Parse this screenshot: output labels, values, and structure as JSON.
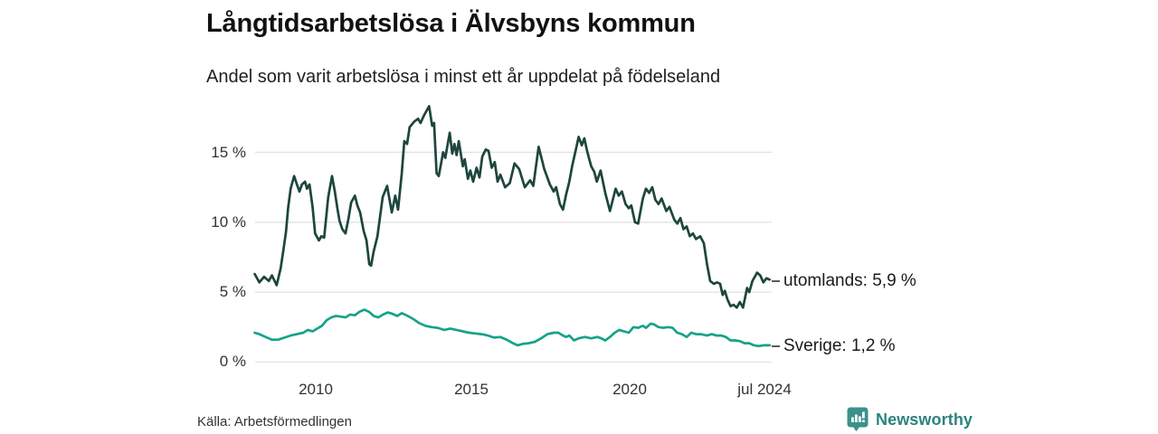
{
  "header": {
    "title": "Långtidsarbetslösa i Älvsbyns kommun",
    "subtitle": "Andel som varit arbetslösa i minst ett år uppdelat på födelseland"
  },
  "footer": {
    "source": "Källa: Arbetsförmedlingen",
    "brand": "Newsworthy"
  },
  "colors": {
    "utomlands_line": "#1d463d",
    "sverige_line": "#16a28a",
    "gridline": "#e2e2e2",
    "brand_teal": "#2b837d",
    "logo_teal": "#3b918a"
  },
  "chart_data": {
    "type": "line",
    "title": "Långtidsarbetslösa i Älvsbyns kommun",
    "subtitle": "Andel som varit arbetslösa i minst ett år uppdelat på födelseland",
    "grid": "horizontal-only",
    "legend_position": "end-of-line-right",
    "x_range": [
      2008.0,
      2024.58
    ],
    "ylim": [
      0,
      18.5
    ],
    "x_axis": {
      "ticks": [
        {
          "label": "2010",
          "year": 2010
        },
        {
          "label": "2015",
          "year": 2015
        },
        {
          "label": "2020",
          "year": 2020
        },
        {
          "label": "jul 2024",
          "year": 2024.34
        }
      ]
    },
    "y_axis": {
      "unit": "%",
      "ticks": [
        {
          "label": "0 %",
          "value": 0
        },
        {
          "label": "5 %",
          "value": 5
        },
        {
          "label": "10 %",
          "value": 10
        },
        {
          "label": "15 %",
          "value": 15
        }
      ]
    },
    "series": [
      {
        "name": "utomlands",
        "end_label": "utomlands: 5,9 %",
        "last_value": "5,9 %",
        "color": "#1d463d",
        "points": [
          [
            2008.05,
            6.3
          ],
          [
            2008.2,
            5.7
          ],
          [
            2008.35,
            6.1
          ],
          [
            2008.5,
            5.8
          ],
          [
            2008.6,
            6.2
          ],
          [
            2008.75,
            5.5
          ],
          [
            2008.88,
            6.7
          ],
          [
            2008.96,
            7.9
          ],
          [
            2009.05,
            9.3
          ],
          [
            2009.12,
            11.1
          ],
          [
            2009.2,
            12.4
          ],
          [
            2009.31,
            13.3
          ],
          [
            2009.4,
            12.7
          ],
          [
            2009.48,
            12.2
          ],
          [
            2009.56,
            12.7
          ],
          [
            2009.66,
            12.9
          ],
          [
            2009.72,
            12.4
          ],
          [
            2009.8,
            12.7
          ],
          [
            2009.9,
            11.1
          ],
          [
            2009.98,
            9.2
          ],
          [
            2010.1,
            8.7
          ],
          [
            2010.18,
            9.0
          ],
          [
            2010.27,
            8.9
          ],
          [
            2010.4,
            11.8
          ],
          [
            2010.52,
            13.3
          ],
          [
            2010.61,
            12.2
          ],
          [
            2010.69,
            11.0
          ],
          [
            2010.76,
            10.1
          ],
          [
            2010.85,
            9.5
          ],
          [
            2010.95,
            9.2
          ],
          [
            2011.05,
            10.3
          ],
          [
            2011.13,
            11.4
          ],
          [
            2011.25,
            11.9
          ],
          [
            2011.33,
            11.2
          ],
          [
            2011.42,
            10.7
          ],
          [
            2011.53,
            9.4
          ],
          [
            2011.62,
            8.7
          ],
          [
            2011.71,
            7.0
          ],
          [
            2011.77,
            6.9
          ],
          [
            2011.85,
            7.9
          ],
          [
            2011.97,
            9.0
          ],
          [
            2012.05,
            10.3
          ],
          [
            2012.14,
            11.8
          ],
          [
            2012.28,
            12.6
          ],
          [
            2012.43,
            10.7
          ],
          [
            2012.54,
            11.9
          ],
          [
            2012.63,
            10.9
          ],
          [
            2012.75,
            13.5
          ],
          [
            2012.83,
            15.8
          ],
          [
            2012.92,
            15.6
          ],
          [
            2013.0,
            16.8
          ],
          [
            2013.15,
            17.2
          ],
          [
            2013.27,
            17.4
          ],
          [
            2013.35,
            17.1
          ],
          [
            2013.45,
            17.6
          ],
          [
            2013.62,
            18.3
          ],
          [
            2013.72,
            16.9
          ],
          [
            2013.78,
            17.1
          ],
          [
            2013.86,
            13.5
          ],
          [
            2013.93,
            13.3
          ],
          [
            2014.07,
            15.0
          ],
          [
            2014.14,
            14.6
          ],
          [
            2014.28,
            16.4
          ],
          [
            2014.36,
            14.9
          ],
          [
            2014.43,
            15.6
          ],
          [
            2014.5,
            14.8
          ],
          [
            2014.57,
            15.8
          ],
          [
            2014.7,
            14.0
          ],
          [
            2014.76,
            14.5
          ],
          [
            2014.86,
            13.1
          ],
          [
            2014.94,
            13.7
          ],
          [
            2015.03,
            12.9
          ],
          [
            2015.14,
            13.9
          ],
          [
            2015.23,
            13.2
          ],
          [
            2015.32,
            14.7
          ],
          [
            2015.43,
            15.2
          ],
          [
            2015.52,
            15.1
          ],
          [
            2015.62,
            13.9
          ],
          [
            2015.72,
            14.3
          ],
          [
            2015.81,
            12.9
          ],
          [
            2015.9,
            13.4
          ],
          [
            2016.05,
            12.5
          ],
          [
            2016.2,
            12.8
          ],
          [
            2016.35,
            14.2
          ],
          [
            2016.5,
            13.8
          ],
          [
            2016.68,
            12.5
          ],
          [
            2016.85,
            13.0
          ],
          [
            2016.95,
            12.6
          ],
          [
            2017.12,
            15.4
          ],
          [
            2017.3,
            13.8
          ],
          [
            2017.48,
            12.7
          ],
          [
            2017.6,
            12.2
          ],
          [
            2017.68,
            12.5
          ],
          [
            2017.8,
            11.3
          ],
          [
            2017.9,
            10.9
          ],
          [
            2018.0,
            12.0
          ],
          [
            2018.1,
            12.9
          ],
          [
            2018.2,
            14.1
          ],
          [
            2018.3,
            15.1
          ],
          [
            2018.4,
            16.1
          ],
          [
            2018.5,
            15.5
          ],
          [
            2018.58,
            16.0
          ],
          [
            2018.68,
            15.0
          ],
          [
            2018.8,
            14.0
          ],
          [
            2018.9,
            13.6
          ],
          [
            2018.98,
            12.9
          ],
          [
            2019.1,
            13.7
          ],
          [
            2019.25,
            12.1
          ],
          [
            2019.4,
            10.8
          ],
          [
            2019.58,
            12.4
          ],
          [
            2019.68,
            11.9
          ],
          [
            2019.78,
            12.2
          ],
          [
            2019.9,
            11.3
          ],
          [
            2020.0,
            11.0
          ],
          [
            2020.08,
            11.2
          ],
          [
            2020.2,
            10.0
          ],
          [
            2020.3,
            9.9
          ],
          [
            2020.45,
            11.7
          ],
          [
            2020.55,
            12.4
          ],
          [
            2020.65,
            12.1
          ],
          [
            2020.75,
            12.5
          ],
          [
            2020.85,
            11.6
          ],
          [
            2020.95,
            11.3
          ],
          [
            2021.05,
            11.7
          ],
          [
            2021.2,
            10.8
          ],
          [
            2021.3,
            11.1
          ],
          [
            2021.45,
            10.2
          ],
          [
            2021.55,
            9.9
          ],
          [
            2021.65,
            10.3
          ],
          [
            2021.75,
            9.5
          ],
          [
            2021.85,
            9.7
          ],
          [
            2021.95,
            9.0
          ],
          [
            2022.05,
            9.2
          ],
          [
            2022.15,
            8.8
          ],
          [
            2022.28,
            9.0
          ],
          [
            2022.4,
            8.5
          ],
          [
            2022.5,
            7.0
          ],
          [
            2022.6,
            5.8
          ],
          [
            2022.72,
            5.6
          ],
          [
            2022.82,
            5.7
          ],
          [
            2022.92,
            5.6
          ],
          [
            2023.0,
            4.8
          ],
          [
            2023.07,
            5.1
          ],
          [
            2023.15,
            4.5
          ],
          [
            2023.25,
            4.0
          ],
          [
            2023.35,
            4.1
          ],
          [
            2023.45,
            3.9
          ],
          [
            2023.55,
            4.3
          ],
          [
            2023.65,
            3.9
          ],
          [
            2023.78,
            5.3
          ],
          [
            2023.85,
            5.0
          ],
          [
            2023.95,
            5.8
          ],
          [
            2024.1,
            6.4
          ],
          [
            2024.2,
            6.2
          ],
          [
            2024.3,
            5.7
          ],
          [
            2024.4,
            6.0
          ],
          [
            2024.5,
            5.9
          ]
        ]
      },
      {
        "name": "Sverige",
        "end_label": "Sverige: 1,2 %",
        "last_value": "1,2 %",
        "color": "#16a28a",
        "points": [
          [
            2008.05,
            2.1
          ],
          [
            2008.2,
            2.0
          ],
          [
            2008.4,
            1.8
          ],
          [
            2008.6,
            1.6
          ],
          [
            2008.8,
            1.6
          ],
          [
            2009.0,
            1.75
          ],
          [
            2009.2,
            1.9
          ],
          [
            2009.4,
            2.0
          ],
          [
            2009.6,
            2.1
          ],
          [
            2009.75,
            2.3
          ],
          [
            2009.9,
            2.2
          ],
          [
            2010.05,
            2.4
          ],
          [
            2010.2,
            2.6
          ],
          [
            2010.35,
            3.0
          ],
          [
            2010.5,
            3.2
          ],
          [
            2010.65,
            3.3
          ],
          [
            2010.8,
            3.25
          ],
          [
            2010.95,
            3.2
          ],
          [
            2011.1,
            3.4
          ],
          [
            2011.25,
            3.35
          ],
          [
            2011.4,
            3.6
          ],
          [
            2011.55,
            3.75
          ],
          [
            2011.7,
            3.6
          ],
          [
            2011.85,
            3.3
          ],
          [
            2012.0,
            3.2
          ],
          [
            2012.15,
            3.4
          ],
          [
            2012.3,
            3.55
          ],
          [
            2012.45,
            3.45
          ],
          [
            2012.6,
            3.3
          ],
          [
            2012.75,
            3.5
          ],
          [
            2012.9,
            3.35
          ],
          [
            2013.1,
            3.1
          ],
          [
            2013.3,
            2.8
          ],
          [
            2013.5,
            2.6
          ],
          [
            2013.7,
            2.5
          ],
          [
            2013.9,
            2.45
          ],
          [
            2014.1,
            2.3
          ],
          [
            2014.3,
            2.4
          ],
          [
            2014.5,
            2.3
          ],
          [
            2014.7,
            2.2
          ],
          [
            2014.9,
            2.1
          ],
          [
            2015.1,
            2.05
          ],
          [
            2015.3,
            2.0
          ],
          [
            2015.5,
            1.9
          ],
          [
            2015.7,
            1.75
          ],
          [
            2015.9,
            1.8
          ],
          [
            2016.1,
            1.6
          ],
          [
            2016.3,
            1.35
          ],
          [
            2016.45,
            1.2
          ],
          [
            2016.6,
            1.3
          ],
          [
            2016.8,
            1.35
          ],
          [
            2017.0,
            1.45
          ],
          [
            2017.2,
            1.7
          ],
          [
            2017.4,
            2.0
          ],
          [
            2017.6,
            2.1
          ],
          [
            2017.75,
            2.1
          ],
          [
            2017.9,
            1.9
          ],
          [
            2018.0,
            1.8
          ],
          [
            2018.1,
            1.9
          ],
          [
            2018.25,
            1.55
          ],
          [
            2018.4,
            1.7
          ],
          [
            2018.6,
            1.8
          ],
          [
            2018.8,
            1.7
          ],
          [
            2019.0,
            1.8
          ],
          [
            2019.12,
            1.7
          ],
          [
            2019.25,
            1.55
          ],
          [
            2019.4,
            1.8
          ],
          [
            2019.55,
            2.1
          ],
          [
            2019.7,
            2.3
          ],
          [
            2019.85,
            2.2
          ],
          [
            2020.0,
            2.1
          ],
          [
            2020.15,
            2.5
          ],
          [
            2020.3,
            2.45
          ],
          [
            2020.45,
            2.6
          ],
          [
            2020.55,
            2.45
          ],
          [
            2020.7,
            2.75
          ],
          [
            2020.8,
            2.7
          ],
          [
            2020.95,
            2.5
          ],
          [
            2021.1,
            2.45
          ],
          [
            2021.25,
            2.5
          ],
          [
            2021.4,
            2.45
          ],
          [
            2021.55,
            2.1
          ],
          [
            2021.7,
            2.0
          ],
          [
            2021.85,
            1.8
          ],
          [
            2022.0,
            2.1
          ],
          [
            2022.15,
            2.0
          ],
          [
            2022.3,
            2.0
          ],
          [
            2022.5,
            1.9
          ],
          [
            2022.65,
            2.0
          ],
          [
            2022.8,
            1.9
          ],
          [
            2022.95,
            1.9
          ],
          [
            2023.1,
            1.8
          ],
          [
            2023.25,
            1.55
          ],
          [
            2023.4,
            1.55
          ],
          [
            2023.55,
            1.5
          ],
          [
            2023.7,
            1.35
          ],
          [
            2023.85,
            1.35
          ],
          [
            2024.0,
            1.2
          ],
          [
            2024.15,
            1.15
          ],
          [
            2024.3,
            1.2
          ],
          [
            2024.5,
            1.2
          ]
        ]
      }
    ]
  }
}
